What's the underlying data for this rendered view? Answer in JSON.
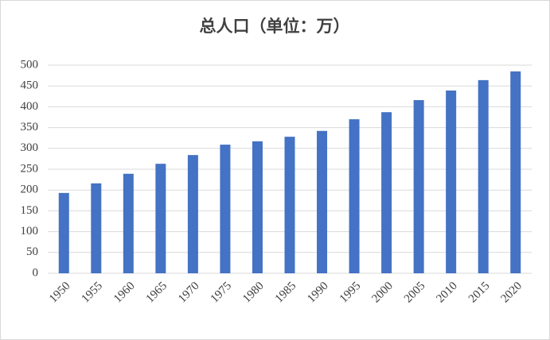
{
  "chart_data": {
    "type": "bar",
    "title": "总人口（单位：万）",
    "categories": [
      "1950",
      "1955",
      "1960",
      "1965",
      "1970",
      "1975",
      "1980",
      "1985",
      "1990",
      "1995",
      "2000",
      "2005",
      "2010",
      "2015",
      "2020"
    ],
    "values": [
      193,
      216,
      239,
      263,
      284,
      309,
      317,
      328,
      342,
      370,
      387,
      416,
      439,
      464,
      485
    ],
    "color": "#4472c4",
    "ylim": [
      0,
      500
    ],
    "yticks": [
      0,
      50,
      100,
      150,
      200,
      250,
      300,
      350,
      400,
      450,
      500
    ],
    "grid": true
  }
}
